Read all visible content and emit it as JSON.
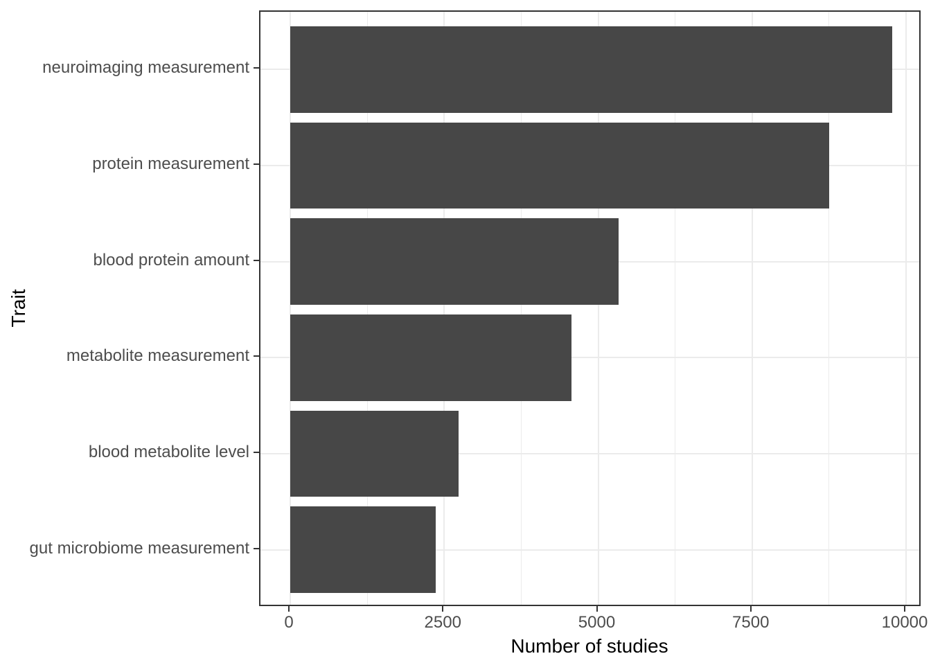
{
  "chart_data": {
    "type": "bar",
    "orientation": "horizontal",
    "title": "",
    "xlabel": "Number of studies",
    "ylabel": "Trait",
    "categories": [
      "neuroimaging measurement",
      "protein measurement",
      "blood protein amount",
      "metabolite measurement",
      "blood metabolite level",
      "gut microbiome measurement"
    ],
    "values": [
      9775,
      8750,
      5330,
      4565,
      2735,
      2365
    ],
    "x_ticks": [
      0,
      2500,
      5000,
      7500,
      10000
    ],
    "x_tick_labels": [
      "0",
      "2500",
      "5000",
      "7500",
      "10000"
    ],
    "x_minor_gridlines": [
      1250,
      3750,
      6250,
      8750
    ],
    "xlim": [
      0,
      10000
    ],
    "grid": "vertical major + minor, horizontal major at category centers",
    "legend": "none",
    "colors": {
      "bar_fill": "#474747",
      "panel_border": "#333333",
      "gridline": "#ebebeb",
      "tick_label": "#4d4d4d",
      "axis_title": "#000000",
      "background": "#ffffff"
    }
  }
}
